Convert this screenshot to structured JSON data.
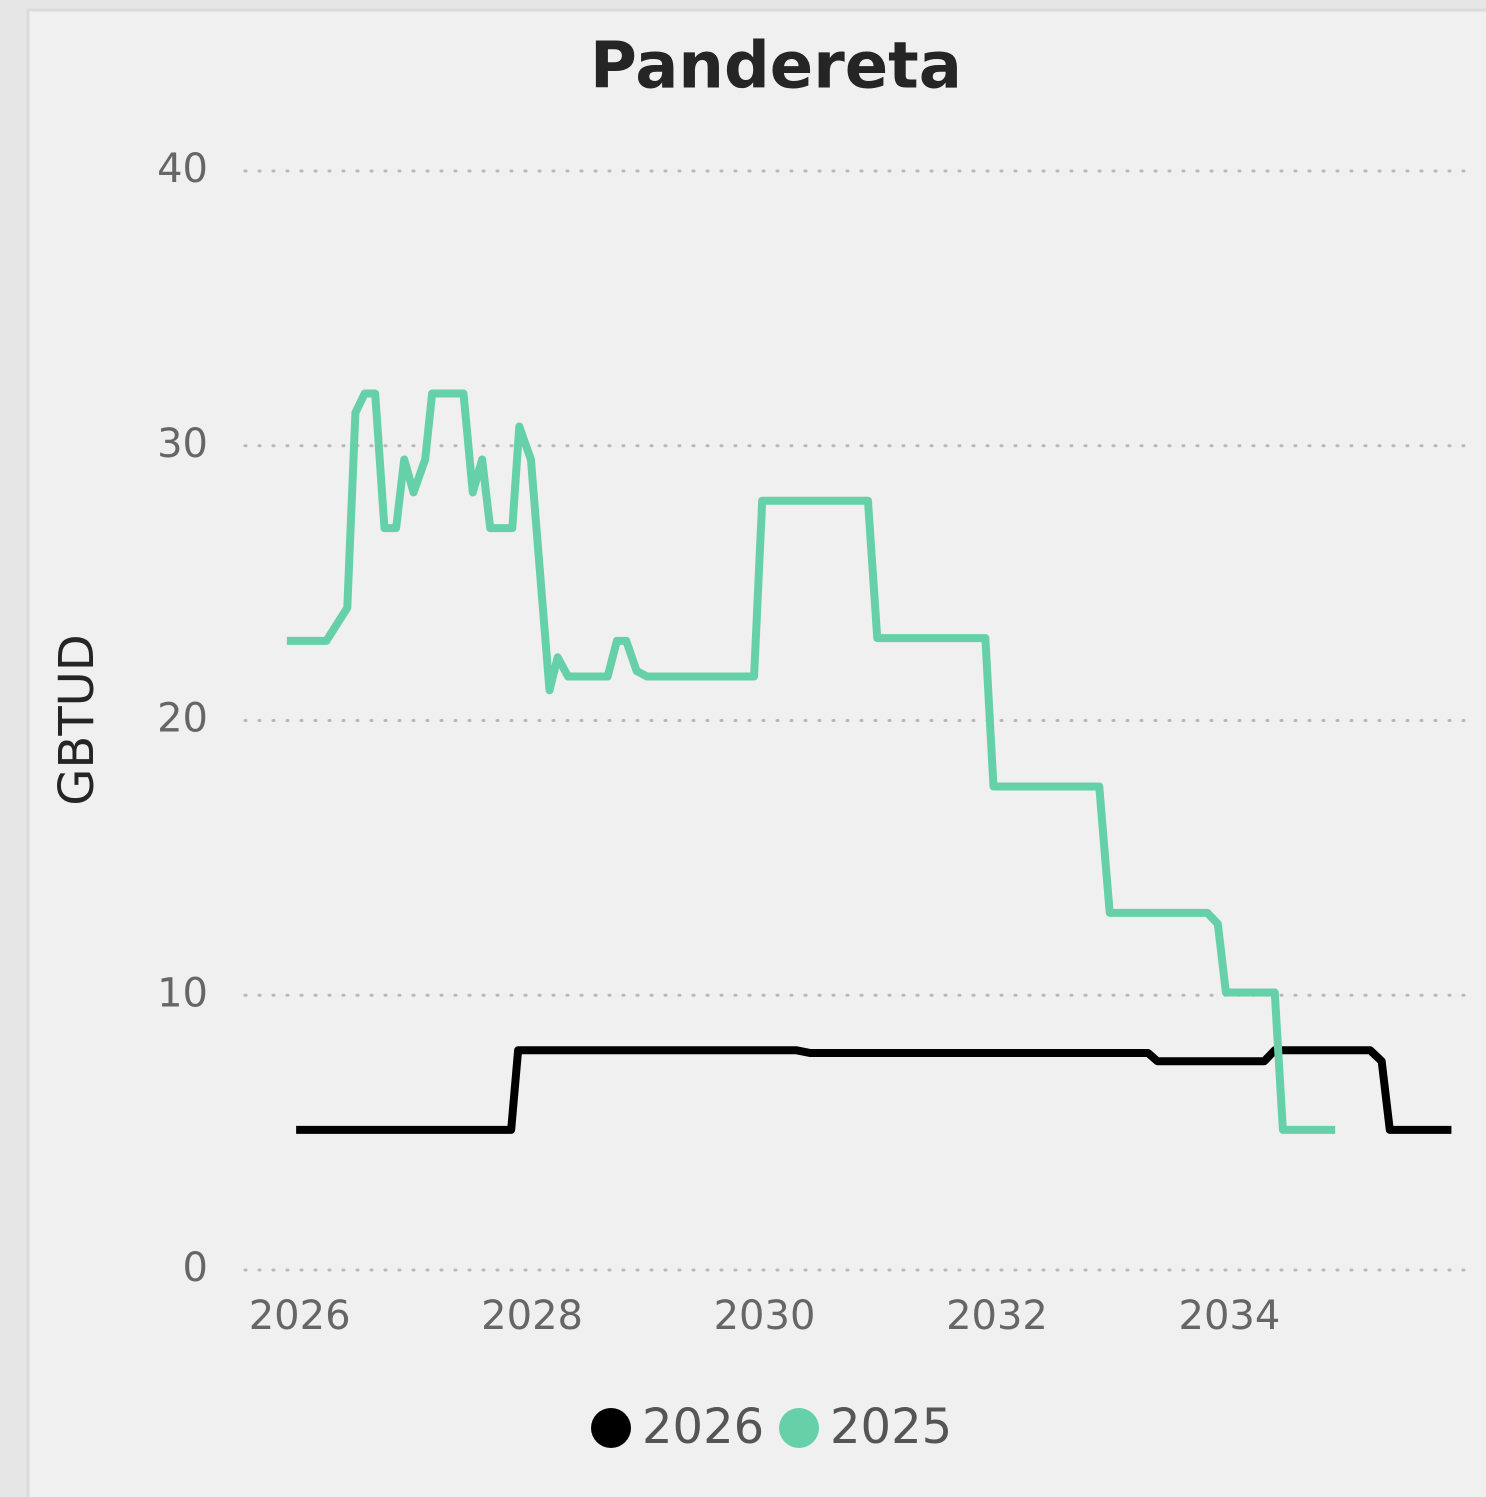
{
  "chart_data": {
    "type": "line",
    "title": "Pandereta",
    "y_label": "GBTUD",
    "xlim": [
      2025.53,
      2036.07
    ],
    "xticks": [
      2026,
      2028,
      2030,
      2032,
      2034
    ],
    "ylim": [
      0,
      40
    ],
    "yticks": [
      0,
      10,
      20,
      30,
      40
    ],
    "grid": true,
    "legend": "bottom",
    "series": [
      {
        "name": "2026",
        "color": "#000000",
        "x": [
          2025.97,
          2027.82,
          2027.88,
          2030.27,
          2030.39,
          2033.3,
          2033.38,
          2034.3,
          2034.39,
          2035.21,
          2035.31,
          2035.38,
          2035.91
        ],
        "values": [
          5.1,
          5.1,
          8.0,
          8.0,
          7.9,
          7.9,
          7.6,
          7.6,
          8.0,
          8.0,
          7.6,
          5.1,
          5.1
        ]
      },
      {
        "name": "2025",
        "color": "#66d1a9",
        "x": [
          2025.89,
          2026.23,
          2026.41,
          2026.48,
          2026.56,
          2026.65,
          2026.73,
          2026.83,
          2026.9,
          2026.98,
          2027.08,
          2027.14,
          2027.41,
          2027.49,
          2027.57,
          2027.64,
          2027.83,
          2027.89,
          2027.99,
          2028.15,
          2028.22,
          2028.31,
          2028.65,
          2028.73,
          2028.81,
          2028.9,
          2028.99,
          2029.91,
          2029.98,
          2030.89,
          2030.97,
          2031.9,
          2031.97,
          2032.88,
          2032.97,
          2033.81,
          2033.9,
          2033.97,
          2034.39,
          2034.46,
          2034.91
        ],
        "values": [
          22.9,
          22.9,
          24.1,
          31.2,
          31.9,
          31.9,
          27.0,
          27.0,
          29.5,
          28.3,
          29.5,
          31.9,
          31.9,
          28.3,
          29.5,
          27.0,
          27.0,
          30.7,
          29.5,
          21.1,
          22.3,
          21.6,
          21.6,
          22.9,
          22.9,
          21.8,
          21.6,
          21.6,
          28.0,
          28.0,
          23.0,
          23.0,
          17.6,
          17.6,
          13.0,
          13.0,
          12.6,
          10.1,
          10.1,
          5.1,
          5.1
        ]
      }
    ]
  }
}
